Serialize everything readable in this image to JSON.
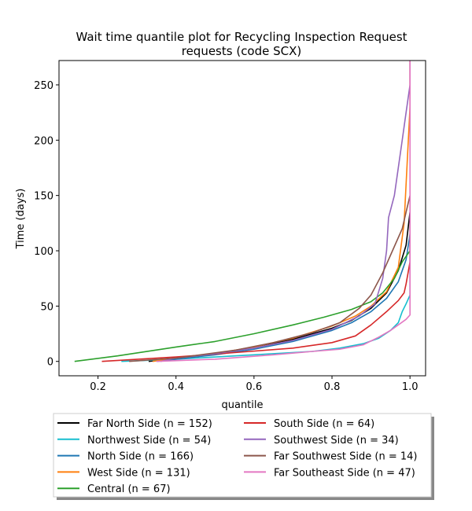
{
  "chart_data": {
    "type": "line",
    "title_lines": [
      "Wait time quantile plot for Recycling Inspection Request",
      "requests (code SCX)"
    ],
    "xlabel": "quantile",
    "ylabel": "Time (days)",
    "xlim": [
      0.1,
      1.04
    ],
    "ylim": [
      -13,
      272
    ],
    "xticks": [
      0.2,
      0.4,
      0.6,
      0.8,
      1.0
    ],
    "xtick_labels": [
      "0.2",
      "0.4",
      "0.6",
      "0.8",
      "1.0"
    ],
    "yticks": [
      0,
      50,
      100,
      150,
      200,
      250
    ],
    "ytick_labels": [
      "0",
      "50",
      "100",
      "150",
      "200",
      "250"
    ],
    "legend_placement": "below",
    "series": [
      {
        "name": "Far North Side (n = 152)",
        "color": "#000000",
        "points": [
          [
            0.33,
            0
          ],
          [
            0.4,
            3
          ],
          [
            0.5,
            7
          ],
          [
            0.6,
            13
          ],
          [
            0.7,
            20
          ],
          [
            0.8,
            30
          ],
          [
            0.85,
            37
          ],
          [
            0.9,
            48
          ],
          [
            0.94,
            62
          ],
          [
            0.97,
            82
          ],
          [
            0.99,
            105
          ],
          [
            1.0,
            135
          ]
        ]
      },
      {
        "name": "Northwest Side (n = 54)",
        "color": "#17becf",
        "points": [
          [
            0.26,
            0
          ],
          [
            0.4,
            2
          ],
          [
            0.6,
            6
          ],
          [
            0.75,
            9
          ],
          [
            0.82,
            12
          ],
          [
            0.88,
            16
          ],
          [
            0.92,
            21
          ],
          [
            0.95,
            28
          ],
          [
            0.97,
            35
          ],
          [
            0.98,
            45
          ],
          [
            0.99,
            52
          ],
          [
            1.0,
            60
          ],
          [
            1.0,
            105
          ]
        ]
      },
      {
        "name": "North Side (n = 166)",
        "color": "#1f77b4",
        "points": [
          [
            0.35,
            0
          ],
          [
            0.4,
            2
          ],
          [
            0.5,
            6
          ],
          [
            0.6,
            11
          ],
          [
            0.7,
            18
          ],
          [
            0.8,
            28
          ],
          [
            0.85,
            35
          ],
          [
            0.9,
            45
          ],
          [
            0.94,
            57
          ],
          [
            0.97,
            72
          ],
          [
            0.99,
            92
          ],
          [
            1.0,
            115
          ]
        ]
      },
      {
        "name": "West Side (n = 131)",
        "color": "#ff7f0e",
        "points": [
          [
            0.34,
            0
          ],
          [
            0.4,
            3
          ],
          [
            0.5,
            7
          ],
          [
            0.6,
            13
          ],
          [
            0.7,
            21
          ],
          [
            0.8,
            32
          ],
          [
            0.86,
            41
          ],
          [
            0.9,
            50
          ],
          [
            0.94,
            63
          ],
          [
            0.97,
            85
          ],
          [
            0.985,
            125
          ],
          [
            0.99,
            160
          ],
          [
            1.0,
            230
          ],
          [
            1.0,
            272
          ]
        ]
      },
      {
        "name": "Central (n = 67)",
        "color": "#2ca02c",
        "points": [
          [
            0.14,
            0
          ],
          [
            0.25,
            5
          ],
          [
            0.4,
            13
          ],
          [
            0.5,
            18
          ],
          [
            0.6,
            25
          ],
          [
            0.7,
            33
          ],
          [
            0.78,
            40
          ],
          [
            0.85,
            47
          ],
          [
            0.9,
            54
          ],
          [
            0.93,
            62
          ],
          [
            0.96,
            75
          ],
          [
            0.98,
            90
          ],
          [
            1.0,
            100
          ],
          [
            1.0,
            125
          ]
        ]
      },
      {
        "name": "South Side (n = 64)",
        "color": "#d62728",
        "points": [
          [
            0.21,
            0
          ],
          [
            0.4,
            4
          ],
          [
            0.55,
            8
          ],
          [
            0.7,
            12
          ],
          [
            0.8,
            17
          ],
          [
            0.86,
            23
          ],
          [
            0.9,
            33
          ],
          [
            0.94,
            45
          ],
          [
            0.97,
            55
          ],
          [
            0.985,
            62
          ],
          [
            0.99,
            70
          ],
          [
            1.0,
            90
          ],
          [
            1.0,
            110
          ]
        ]
      },
      {
        "name": "Southwest Side (n = 34)",
        "color": "#9467bd",
        "points": [
          [
            0.36,
            0
          ],
          [
            0.4,
            3
          ],
          [
            0.5,
            7
          ],
          [
            0.6,
            12
          ],
          [
            0.7,
            19
          ],
          [
            0.8,
            29
          ],
          [
            0.87,
            41
          ],
          [
            0.91,
            52
          ],
          [
            0.93,
            75
          ],
          [
            0.94,
            100
          ],
          [
            0.945,
            130
          ],
          [
            0.96,
            150
          ],
          [
            0.97,
            175
          ],
          [
            0.98,
            200
          ],
          [
            0.99,
            225
          ],
          [
            1.0,
            250
          ],
          [
            1.0,
            272
          ]
        ]
      },
      {
        "name": "Far Southwest Side (n = 14)",
        "color": "#8c564b",
        "points": [
          [
            0.28,
            0
          ],
          [
            0.4,
            3
          ],
          [
            0.55,
            10
          ],
          [
            0.65,
            17
          ],
          [
            0.75,
            26
          ],
          [
            0.82,
            35
          ],
          [
            0.87,
            48
          ],
          [
            0.9,
            60
          ],
          [
            0.93,
            80
          ],
          [
            0.955,
            100
          ],
          [
            0.98,
            120
          ],
          [
            0.99,
            135
          ],
          [
            1.0,
            150
          ]
        ]
      },
      {
        "name": "Far Southeast Side (n = 47)",
        "color": "#e377c2",
        "points": [
          [
            0.35,
            0
          ],
          [
            0.5,
            2
          ],
          [
            0.65,
            6
          ],
          [
            0.75,
            9
          ],
          [
            0.82,
            11
          ],
          [
            0.88,
            15
          ],
          [
            0.92,
            22
          ],
          [
            0.95,
            28
          ],
          [
            0.97,
            33
          ],
          [
            0.99,
            38
          ],
          [
            1.0,
            42
          ],
          [
            1.0,
            272
          ]
        ]
      }
    ]
  }
}
